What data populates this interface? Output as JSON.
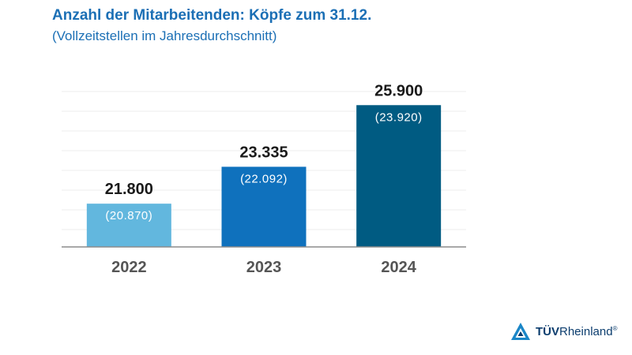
{
  "chart_data": {
    "type": "bar",
    "title": "Anzahl der Mitarbeitenden: Köpfe zum 31.12.",
    "subtitle": "(Vollzeitstellen im Jahresdurchschnitt)",
    "categories": [
      "2022",
      "2023",
      "2024"
    ],
    "series": [
      {
        "name": "Köpfe zum 31.12.",
        "values": [
          21800,
          23335,
          25900
        ],
        "labels": [
          "21.800",
          "23.335",
          "25.900"
        ]
      },
      {
        "name": "Vollzeitstellen im Jahresdurchschnitt",
        "values": [
          20870,
          22092,
          23920
        ],
        "labels": [
          "(20.870)",
          "(22.092)",
          "(23.920)"
        ]
      }
    ],
    "colors": [
      "#62b7de",
      "#0f71bd",
      "#005b82"
    ],
    "ylim": [
      20000,
      26500
    ],
    "grid": true
  },
  "logo": {
    "brand": "TÜV",
    "name": "Rheinland",
    "mark": "®"
  }
}
